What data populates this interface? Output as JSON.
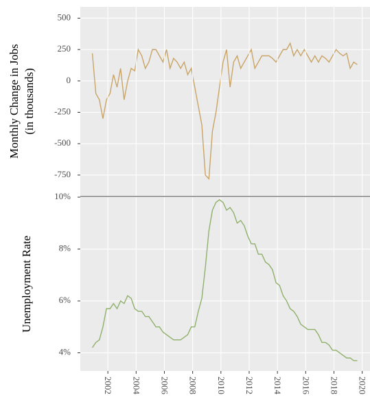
{
  "chart_data": [
    {
      "type": "line",
      "y_label": [
        "Monthly Change in Jobs",
        "(in thousands)"
      ],
      "color": "#c9a467",
      "xlim": [
        2000.05,
        2020.6
      ],
      "ylim": [
        -915,
        590
      ],
      "yticks": [
        500,
        250,
        0,
        -250,
        -500,
        -750
      ],
      "grid": true,
      "x": [
        2000.9,
        2001.15,
        2001.4,
        2001.65,
        2001.9,
        2002.15,
        2002.4,
        2002.65,
        2002.9,
        2003.15,
        2003.4,
        2003.65,
        2003.9,
        2004.15,
        2004.4,
        2004.65,
        2004.9,
        2005.15,
        2005.4,
        2005.65,
        2005.9,
        2006.15,
        2006.4,
        2006.65,
        2006.9,
        2007.15,
        2007.4,
        2007.65,
        2007.9,
        2008.15,
        2008.4,
        2008.65,
        2008.9,
        2009.15,
        2009.4,
        2009.65,
        2009.9,
        2010.15,
        2010.4,
        2010.65,
        2010.9,
        2011.15,
        2011.4,
        2011.65,
        2011.9,
        2012.15,
        2012.4,
        2012.65,
        2012.9,
        2013.15,
        2013.4,
        2013.65,
        2013.9,
        2014.15,
        2014.4,
        2014.65,
        2014.9,
        2015.15,
        2015.4,
        2015.65,
        2015.9,
        2016.15,
        2016.4,
        2016.65,
        2016.9,
        2017.15,
        2017.4,
        2017.65,
        2017.9,
        2018.15,
        2018.4,
        2018.65,
        2018.9,
        2019.15,
        2019.4,
        2019.65
      ],
      "values": [
        220,
        -100,
        -150,
        -300,
        -150,
        -100,
        50,
        -50,
        100,
        -150,
        0,
        100,
        80,
        250,
        200,
        100,
        150,
        250,
        250,
        200,
        150,
        250,
        100,
        180,
        150,
        100,
        150,
        50,
        100,
        -50,
        -200,
        -350,
        -750,
        -780,
        -400,
        -250,
        -50,
        150,
        250,
        -50,
        150,
        200,
        100,
        150,
        200,
        250,
        100,
        150,
        200,
        200,
        200,
        180,
        150,
        200,
        250,
        250,
        300,
        200,
        250,
        200,
        250,
        200,
        150,
        200,
        150,
        200,
        180,
        150,
        200,
        250,
        220,
        200,
        220,
        100,
        150,
        130
      ]
    },
    {
      "type": "line",
      "y_label": [
        "Unemployment Rate"
      ],
      "color": "#8fb06a",
      "xlim": [
        2000.05,
        2020.6
      ],
      "xticks": [
        2002,
        2004,
        2006,
        2008,
        2010,
        2012,
        2014,
        2016,
        2018,
        2020
      ],
      "ylim": [
        3.3,
        10
      ],
      "yticks": [
        {
          "value": 10,
          "label": "10%"
        },
        {
          "value": 8,
          "label": "8%"
        },
        {
          "value": 6,
          "label": "6%"
        },
        {
          "value": 4,
          "label": "4%"
        }
      ],
      "grid": true,
      "x": [
        2000.9,
        2001.15,
        2001.4,
        2001.65,
        2001.9,
        2002.15,
        2002.4,
        2002.65,
        2002.9,
        2003.15,
        2003.4,
        2003.65,
        2003.9,
        2004.15,
        2004.4,
        2004.65,
        2004.9,
        2005.15,
        2005.4,
        2005.65,
        2005.9,
        2006.15,
        2006.4,
        2006.65,
        2006.9,
        2007.15,
        2007.4,
        2007.65,
        2007.9,
        2008.15,
        2008.4,
        2008.65,
        2008.9,
        2009.15,
        2009.4,
        2009.65,
        2009.9,
        2010.15,
        2010.4,
        2010.65,
        2010.9,
        2011.15,
        2011.4,
        2011.65,
        2011.9,
        2012.15,
        2012.4,
        2012.65,
        2012.9,
        2013.15,
        2013.4,
        2013.65,
        2013.9,
        2014.15,
        2014.4,
        2014.65,
        2014.9,
        2015.15,
        2015.4,
        2015.65,
        2015.9,
        2016.15,
        2016.4,
        2016.65,
        2016.9,
        2017.15,
        2017.4,
        2017.65,
        2017.9,
        2018.15,
        2018.4,
        2018.65,
        2018.9,
        2019.15,
        2019.4,
        2019.65
      ],
      "values": [
        4.2,
        4.4,
        4.5,
        5.0,
        5.7,
        5.7,
        5.9,
        5.7,
        6.0,
        5.9,
        6.2,
        6.1,
        5.7,
        5.6,
        5.6,
        5.4,
        5.4,
        5.2,
        5.0,
        5.0,
        4.8,
        4.7,
        4.6,
        4.5,
        4.5,
        4.5,
        4.6,
        4.7,
        5.0,
        5.0,
        5.6,
        6.1,
        7.3,
        8.7,
        9.5,
        9.8,
        9.9,
        9.8,
        9.5,
        9.6,
        9.4,
        9.0,
        9.1,
        8.9,
        8.5,
        8.2,
        8.2,
        7.8,
        7.8,
        7.5,
        7.4,
        7.2,
        6.7,
        6.6,
        6.2,
        6.0,
        5.7,
        5.6,
        5.4,
        5.1,
        5.0,
        4.9,
        4.9,
        4.9,
        4.7,
        4.4,
        4.4,
        4.3,
        4.1,
        4.1,
        4.0,
        3.9,
        3.8,
        3.8,
        3.7,
        3.7
      ]
    }
  ]
}
